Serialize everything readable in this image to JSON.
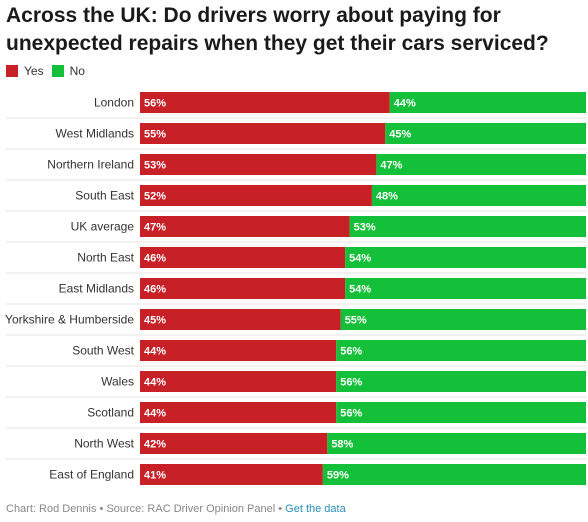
{
  "header": {
    "title": "Across the UK: Do drivers worry about paying for unexpected repairs when they get their cars serviced?"
  },
  "legend": [
    {
      "label": "Yes",
      "color": "#c72027"
    },
    {
      "label": "No",
      "color": "#14c039"
    }
  ],
  "chart_data": {
    "type": "bar",
    "orientation": "horizontal",
    "stacked": true,
    "percent_stacked": true,
    "title": "Across the UK: Do drivers worry about paying for unexpected repairs when they get their cars serviced?",
    "xlim": [
      0,
      100
    ],
    "grid": false,
    "legend_position": "top-left",
    "categories": [
      "London",
      "West Midlands",
      "Northern Ireland",
      "South East",
      "UK average",
      "North East",
      "East Midlands",
      "Yorkshire & Humberside",
      "South West",
      "Wales",
      "Scotland",
      "North West",
      "East of England"
    ],
    "series": [
      {
        "name": "Yes",
        "color": "#c72027",
        "values": [
          56,
          55,
          53,
          52,
          47,
          46,
          46,
          45,
          44,
          44,
          44,
          42,
          41
        ]
      },
      {
        "name": "No",
        "color": "#14c039",
        "values": [
          44,
          45,
          47,
          48,
          53,
          54,
          54,
          55,
          56,
          56,
          56,
          58,
          59
        ]
      }
    ],
    "value_suffix": "%"
  },
  "footer": {
    "credit": "Chart: Rod Dennis • Source: RAC Driver Opinion Panel • ",
    "link": "Get the data"
  }
}
